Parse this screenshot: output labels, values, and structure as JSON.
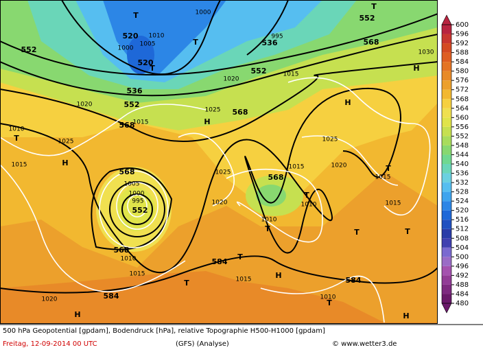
{
  "colorbar": {
    "ticks": [
      480,
      484,
      488,
      492,
      496,
      500,
      504,
      508,
      512,
      516,
      520,
      524,
      528,
      532,
      536,
      540,
      544,
      548,
      552,
      556,
      560,
      564,
      568,
      572,
      576,
      580,
      584,
      588,
      592,
      596,
      600
    ],
    "colors": [
      "#6a1a6a",
      "#7e2a80",
      "#923c96",
      "#a452ae",
      "#9a6cc6",
      "#7a6ad0",
      "#4040b0",
      "#2a3ca8",
      "#2050c0",
      "#1e68d8",
      "#2c86e6",
      "#3ea4ee",
      "#56bef0",
      "#6ad0e0",
      "#6ad6b8",
      "#70d890",
      "#88d870",
      "#a8dc5c",
      "#c6e050",
      "#e0e44a",
      "#f0e050",
      "#f6d040",
      "#f2b830",
      "#eca02c",
      "#e88a28",
      "#e47424",
      "#de5e22",
      "#d44a22",
      "#c83630",
      "#b82440"
    ]
  },
  "map_labels": [
    "552",
    "520",
    "520",
    "536",
    "552",
    "568",
    "T",
    "T",
    "T",
    "536",
    "552",
    "568",
    "552",
    "568",
    "H",
    "H",
    "T",
    "568",
    "552",
    "568",
    "568",
    "T",
    "T",
    "T",
    "584",
    "T",
    "H",
    "584",
    "584",
    "H",
    "T",
    "H",
    "H",
    "T",
    "T",
    "T",
    "H",
    "T"
  ],
  "pressure_labels": [
    "1010",
    "1015",
    "1025",
    "1020",
    "1015",
    "1025",
    "1025",
    "1020",
    "1015",
    "1025",
    "1020",
    "1015",
    "1015",
    "1010",
    "1010",
    "1015",
    "1015",
    "1020",
    "1010",
    "1030",
    "1015",
    "1020",
    "1000",
    "1005",
    "1010",
    "1000",
    "995",
    "1000",
    "995",
    "1005",
    "1010"
  ],
  "footer": {
    "line1": "500 hPa Geopotential [gpdam], Bodendruck [hPa], relative Topographie H500-H1000 [gpdam]",
    "date": "Freitag, 12-09-2014  00 UTC",
    "model": "(GFS)  (Analyse)",
    "credit": "© www.wetter3.de"
  }
}
